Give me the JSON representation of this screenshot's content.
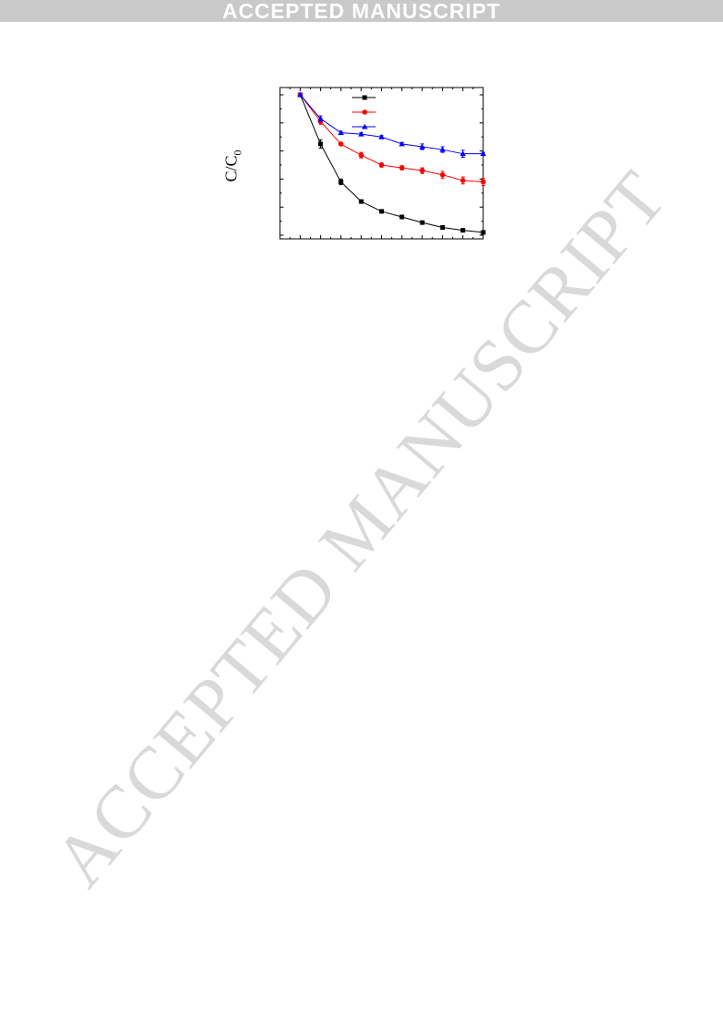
{
  "banner": {
    "text": "ACCEPTED MANUSCRIPT",
    "color": "#c9c9c9"
  },
  "watermark": {
    "text": "ACCEPTED MANUSCRIPT",
    "color": "#d9d9d9"
  },
  "chart_data": {
    "type": "line",
    "title": "",
    "xlabel": "",
    "ylabel": "C/C0",
    "ylabel_main": "C/C",
    "ylabel_sub": "0",
    "xlim": [
      0,
      10
    ],
    "ylim": [
      0.0,
      1.0
    ],
    "x": [
      1,
      2,
      3,
      4,
      5,
      6,
      7,
      8,
      9,
      10
    ],
    "grid": false,
    "legend": "top-center",
    "series": [
      {
        "name": "",
        "color": "#000000",
        "marker": "square",
        "values": [
          1.0,
          0.65,
          0.38,
          0.24,
          0.17,
          0.13,
          0.09,
          0.055,
          0.035,
          0.02
        ],
        "errors": [
          0.0,
          0.03,
          0.02,
          0.01,
          0.01,
          0.01,
          0.01,
          0.005,
          0.005,
          0.005
        ]
      },
      {
        "name": "",
        "color": "#ff0000",
        "marker": "circle",
        "values": [
          1.0,
          0.81,
          0.65,
          0.57,
          0.5,
          0.48,
          0.46,
          0.43,
          0.39,
          0.38
        ],
        "errors": [
          0.0,
          0.02,
          0.01,
          0.02,
          0.015,
          0.015,
          0.02,
          0.025,
          0.025,
          0.025
        ]
      },
      {
        "name": "",
        "color": "#0000ff",
        "marker": "triangle",
        "values": [
          1.0,
          0.83,
          0.73,
          0.72,
          0.7,
          0.65,
          0.63,
          0.61,
          0.58,
          0.58
        ],
        "errors": [
          0.0,
          0.02,
          0.01,
          0.01,
          0.01,
          0.01,
          0.02,
          0.02,
          0.025,
          0.01
        ]
      }
    ]
  }
}
